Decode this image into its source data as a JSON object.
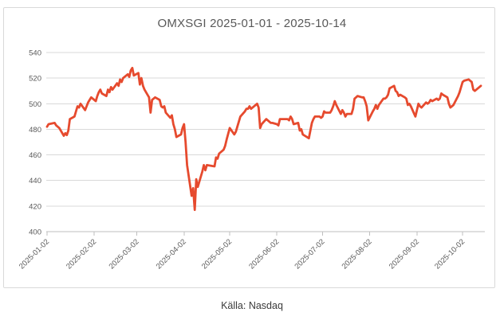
{
  "card": {
    "title": "OMXSGI 2025-01-01 - 2025-10-14"
  },
  "footer": {
    "source_label": "Källa: Nasdaq"
  },
  "colors": {
    "line": "#e64a2e",
    "grid": "#d9d9d9",
    "axis": "#bfbfbf",
    "tick_label": "#595959",
    "title": "#595959",
    "border": "#d9d9d9",
    "footer_text": "#3a3a3a"
  },
  "chart_data": {
    "type": "line",
    "title": "OMXSGI 2025-01-01 - 2025-10-14",
    "source_caption": "Källa: Nasdaq",
    "grid": true,
    "legend": false,
    "xlabel": "",
    "ylabel": "",
    "x_axis": {
      "start_date": "2025-01-02",
      "end_date": "2025-10-14",
      "tick_labels": [
        "2025-01-02",
        "2025-02-02",
        "2025-03-02",
        "2025-04-02",
        "2025-05-02",
        "2025-06-02",
        "2025-07-02",
        "2025-08-02",
        "2025-09-02",
        "2025-10-02"
      ],
      "label_rotation_deg": -45
    },
    "y_axis": {
      "min": 400,
      "max": 540,
      "tick_step": 20,
      "tick_labels": [
        "540",
        "520",
        "500",
        "480",
        "460",
        "440",
        "420",
        "400"
      ]
    },
    "series": [
      {
        "name": "OMXSGI",
        "color": "#e64a2e",
        "points": [
          [
            "2025-01-02",
            482
          ],
          [
            "2025-01-03",
            484
          ],
          [
            "2025-01-07",
            485
          ],
          [
            "2025-01-08",
            483
          ],
          [
            "2025-01-09",
            482
          ],
          [
            "2025-01-10",
            481
          ],
          [
            "2025-01-13",
            475
          ],
          [
            "2025-01-14",
            477
          ],
          [
            "2025-01-15",
            475.5
          ],
          [
            "2025-01-16",
            479
          ],
          [
            "2025-01-17",
            488
          ],
          [
            "2025-01-20",
            490
          ],
          [
            "2025-01-21",
            494
          ],
          [
            "2025-01-22",
            498
          ],
          [
            "2025-01-23",
            497
          ],
          [
            "2025-01-24",
            500
          ],
          [
            "2025-01-27",
            495
          ],
          [
            "2025-01-28",
            498
          ],
          [
            "2025-01-29",
            501
          ],
          [
            "2025-01-30",
            503
          ],
          [
            "2025-01-31",
            505
          ],
          [
            "2025-02-03",
            502
          ],
          [
            "2025-02-04",
            506
          ],
          [
            "2025-02-05",
            509
          ],
          [
            "2025-02-06",
            511
          ],
          [
            "2025-02-07",
            508
          ],
          [
            "2025-02-10",
            506
          ],
          [
            "2025-02-11",
            511
          ],
          [
            "2025-02-12",
            509
          ],
          [
            "2025-02-13",
            513
          ],
          [
            "2025-02-14",
            511
          ],
          [
            "2025-02-17",
            516
          ],
          [
            "2025-02-18",
            514
          ],
          [
            "2025-02-19",
            519
          ],
          [
            "2025-02-20",
            517
          ],
          [
            "2025-02-21",
            520
          ],
          [
            "2025-02-24",
            523
          ],
          [
            "2025-02-25",
            521
          ],
          [
            "2025-02-26",
            526
          ],
          [
            "2025-02-27",
            528
          ],
          [
            "2025-02-28",
            522
          ],
          [
            "2025-03-03",
            524
          ],
          [
            "2025-03-04",
            515
          ],
          [
            "2025-03-05",
            520
          ],
          [
            "2025-03-06",
            514
          ],
          [
            "2025-03-07",
            511
          ],
          [
            "2025-03-10",
            505
          ],
          [
            "2025-03-11",
            493
          ],
          [
            "2025-03-12",
            503
          ],
          [
            "2025-03-13",
            504
          ],
          [
            "2025-03-14",
            505
          ],
          [
            "2025-03-17",
            503
          ],
          [
            "2025-03-18",
            498
          ],
          [
            "2025-03-19",
            497
          ],
          [
            "2025-03-20",
            498
          ],
          [
            "2025-03-21",
            493
          ],
          [
            "2025-03-24",
            489
          ],
          [
            "2025-03-25",
            491
          ],
          [
            "2025-03-26",
            484
          ],
          [
            "2025-03-27",
            480
          ],
          [
            "2025-03-28",
            474
          ],
          [
            "2025-03-31",
            476
          ],
          [
            "2025-04-01",
            481
          ],
          [
            "2025-04-02",
            484
          ],
          [
            "2025-04-03",
            470
          ],
          [
            "2025-04-04",
            452
          ],
          [
            "2025-04-07",
            428
          ],
          [
            "2025-04-08",
            434
          ],
          [
            "2025-04-09",
            417
          ],
          [
            "2025-04-10",
            441
          ],
          [
            "2025-04-11",
            435
          ],
          [
            "2025-04-14",
            447
          ],
          [
            "2025-04-15",
            452
          ],
          [
            "2025-04-16",
            448
          ],
          [
            "2025-04-17",
            452
          ],
          [
            "2025-04-22",
            451
          ],
          [
            "2025-04-23",
            458
          ],
          [
            "2025-04-24",
            457
          ],
          [
            "2025-04-25",
            461
          ],
          [
            "2025-04-28",
            464
          ],
          [
            "2025-04-29",
            467
          ],
          [
            "2025-04-30",
            472
          ],
          [
            "2025-05-02",
            481
          ],
          [
            "2025-05-05",
            476
          ],
          [
            "2025-05-06",
            478
          ],
          [
            "2025-05-07",
            482
          ],
          [
            "2025-05-08",
            486
          ],
          [
            "2025-05-09",
            490
          ],
          [
            "2025-05-12",
            494
          ],
          [
            "2025-05-13",
            496
          ],
          [
            "2025-05-14",
            496
          ],
          [
            "2025-05-15",
            498
          ],
          [
            "2025-05-16",
            496
          ],
          [
            "2025-05-19",
            499
          ],
          [
            "2025-05-20",
            500
          ],
          [
            "2025-05-21",
            497
          ],
          [
            "2025-05-22",
            481
          ],
          [
            "2025-05-23",
            484
          ],
          [
            "2025-05-26",
            488
          ],
          [
            "2025-05-27",
            487
          ],
          [
            "2025-05-28",
            486
          ],
          [
            "2025-05-29",
            485
          ],
          [
            "2025-05-30",
            485
          ],
          [
            "2025-06-02",
            484
          ],
          [
            "2025-06-03",
            483
          ],
          [
            "2025-06-04",
            488
          ],
          [
            "2025-06-05",
            488
          ],
          [
            "2025-06-09",
            488
          ],
          [
            "2025-06-10",
            487
          ],
          [
            "2025-06-11",
            490
          ],
          [
            "2025-06-12",
            488
          ],
          [
            "2025-06-13",
            484
          ],
          [
            "2025-06-16",
            485
          ],
          [
            "2025-06-17",
            479
          ],
          [
            "2025-06-18",
            480
          ],
          [
            "2025-06-19",
            476
          ],
          [
            "2025-06-23",
            473
          ],
          [
            "2025-06-24",
            479
          ],
          [
            "2025-06-25",
            485
          ],
          [
            "2025-06-26",
            488
          ],
          [
            "2025-06-27",
            490
          ],
          [
            "2025-06-30",
            490
          ],
          [
            "2025-07-01",
            489
          ],
          [
            "2025-07-02",
            490
          ],
          [
            "2025-07-03",
            494
          ],
          [
            "2025-07-04",
            493
          ],
          [
            "2025-07-07",
            493
          ],
          [
            "2025-07-08",
            495
          ],
          [
            "2025-07-09",
            498
          ],
          [
            "2025-07-10",
            502
          ],
          [
            "2025-07-11",
            499
          ],
          [
            "2025-07-14",
            492
          ],
          [
            "2025-07-15",
            495
          ],
          [
            "2025-07-16",
            493
          ],
          [
            "2025-07-17",
            490
          ],
          [
            "2025-07-18",
            492
          ],
          [
            "2025-07-21",
            492
          ],
          [
            "2025-07-22",
            496
          ],
          [
            "2025-07-23",
            504
          ],
          [
            "2025-07-24",
            505
          ],
          [
            "2025-07-25",
            506
          ],
          [
            "2025-07-28",
            505
          ],
          [
            "2025-07-29",
            505
          ],
          [
            "2025-07-30",
            502
          ],
          [
            "2025-07-31",
            498
          ],
          [
            "2025-08-01",
            487
          ],
          [
            "2025-08-04",
            494
          ],
          [
            "2025-08-05",
            496
          ],
          [
            "2025-08-06",
            499
          ],
          [
            "2025-08-07",
            496
          ],
          [
            "2025-08-08",
            499
          ],
          [
            "2025-08-11",
            504
          ],
          [
            "2025-08-12",
            504
          ],
          [
            "2025-08-13",
            505
          ],
          [
            "2025-08-14",
            507
          ],
          [
            "2025-08-15",
            512
          ],
          [
            "2025-08-18",
            514
          ],
          [
            "2025-08-19",
            510
          ],
          [
            "2025-08-20",
            509
          ],
          [
            "2025-08-21",
            506
          ],
          [
            "2025-08-22",
            507
          ],
          [
            "2025-08-25",
            505
          ],
          [
            "2025-08-26",
            504
          ],
          [
            "2025-08-27",
            499
          ],
          [
            "2025-08-28",
            500
          ],
          [
            "2025-08-29",
            498
          ],
          [
            "2025-09-01",
            490
          ],
          [
            "2025-09-02",
            495
          ],
          [
            "2025-09-03",
            500
          ],
          [
            "2025-09-04",
            498
          ],
          [
            "2025-09-05",
            497
          ],
          [
            "2025-09-08",
            501
          ],
          [
            "2025-09-09",
            500
          ],
          [
            "2025-09-10",
            501
          ],
          [
            "2025-09-11",
            503
          ],
          [
            "2025-09-12",
            502
          ],
          [
            "2025-09-15",
            504
          ],
          [
            "2025-09-16",
            503
          ],
          [
            "2025-09-17",
            504
          ],
          [
            "2025-09-18",
            508
          ],
          [
            "2025-09-19",
            507
          ],
          [
            "2025-09-22",
            505
          ],
          [
            "2025-09-23",
            500
          ],
          [
            "2025-09-24",
            497
          ],
          [
            "2025-09-25",
            498
          ],
          [
            "2025-09-26",
            499
          ],
          [
            "2025-09-29",
            506
          ],
          [
            "2025-09-30",
            509
          ],
          [
            "2025-10-01",
            513
          ],
          [
            "2025-10-02",
            517
          ],
          [
            "2025-10-03",
            518
          ],
          [
            "2025-10-06",
            519
          ],
          [
            "2025-10-07",
            518
          ],
          [
            "2025-10-08",
            517
          ],
          [
            "2025-10-09",
            511
          ],
          [
            "2025-10-10",
            510
          ],
          [
            "2025-10-13",
            513
          ],
          [
            "2025-10-14",
            514
          ]
        ]
      }
    ]
  }
}
